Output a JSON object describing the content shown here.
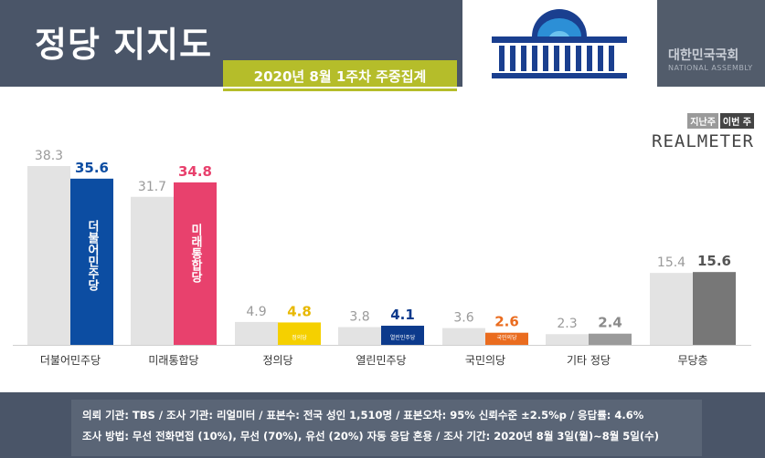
{
  "header": {
    "title": "정당 지지도",
    "subtitle": "2020년 8월 1주차 주중집계",
    "assembly_ko": "대한민국국회",
    "assembly_en": "NATIONAL ASSEMBLY"
  },
  "legend": {
    "prev": "지난주",
    "cur": "이번 주"
  },
  "brand": "REALMETER",
  "colors": {
    "prev_bar": "#e3e3e3",
    "header_bg": "#4a5568",
    "subtitle_bg": "#b5bd2a"
  },
  "chart_data": {
    "type": "bar",
    "categories": [
      "더불어민주당",
      "미래통합당",
      "정의당",
      "열린민주당",
      "국민의당",
      "기타 정당",
      "무당층"
    ],
    "series": [
      {
        "name": "지난주",
        "values": [
          38.3,
          31.7,
          4.9,
          3.8,
          3.6,
          2.3,
          15.4
        ]
      },
      {
        "name": "이번 주",
        "values": [
          35.6,
          34.8,
          4.8,
          4.1,
          2.6,
          2.4,
          15.6
        ]
      }
    ],
    "current_colors": [
      "#0c4da2",
      "#e8416d",
      "#f5d000",
      "#0c3a8c",
      "#ea6c1f",
      "#9a9a9a",
      "#777777"
    ],
    "current_label_colors": [
      "#0c4da2",
      "#e8416d",
      "#e8b800",
      "#0c3a8c",
      "#ea6c1f",
      "#8a8a8a",
      "#555555"
    ],
    "party_marks": [
      "더불어민주당",
      "미래통합당",
      "정의당",
      "열린민주당",
      "국민의당",
      "",
      ""
    ],
    "ylim": [
      0,
      40
    ]
  },
  "footer": {
    "line1": "의뢰 기관: TBS / 조사 기관: 리얼미터 / 표본수: 전국 성인 1,510명 / 표본오차: 95% 신뢰수준 ±2.5%p / 응답률: 4.6%",
    "line2": "조사 방법: 무선 전화면접 (10%), 무선 (70%), 유선 (20%) 자동 응답 혼용 / 조사 기간: 2020년 8월 3일(월)~8월 5일(수)"
  }
}
